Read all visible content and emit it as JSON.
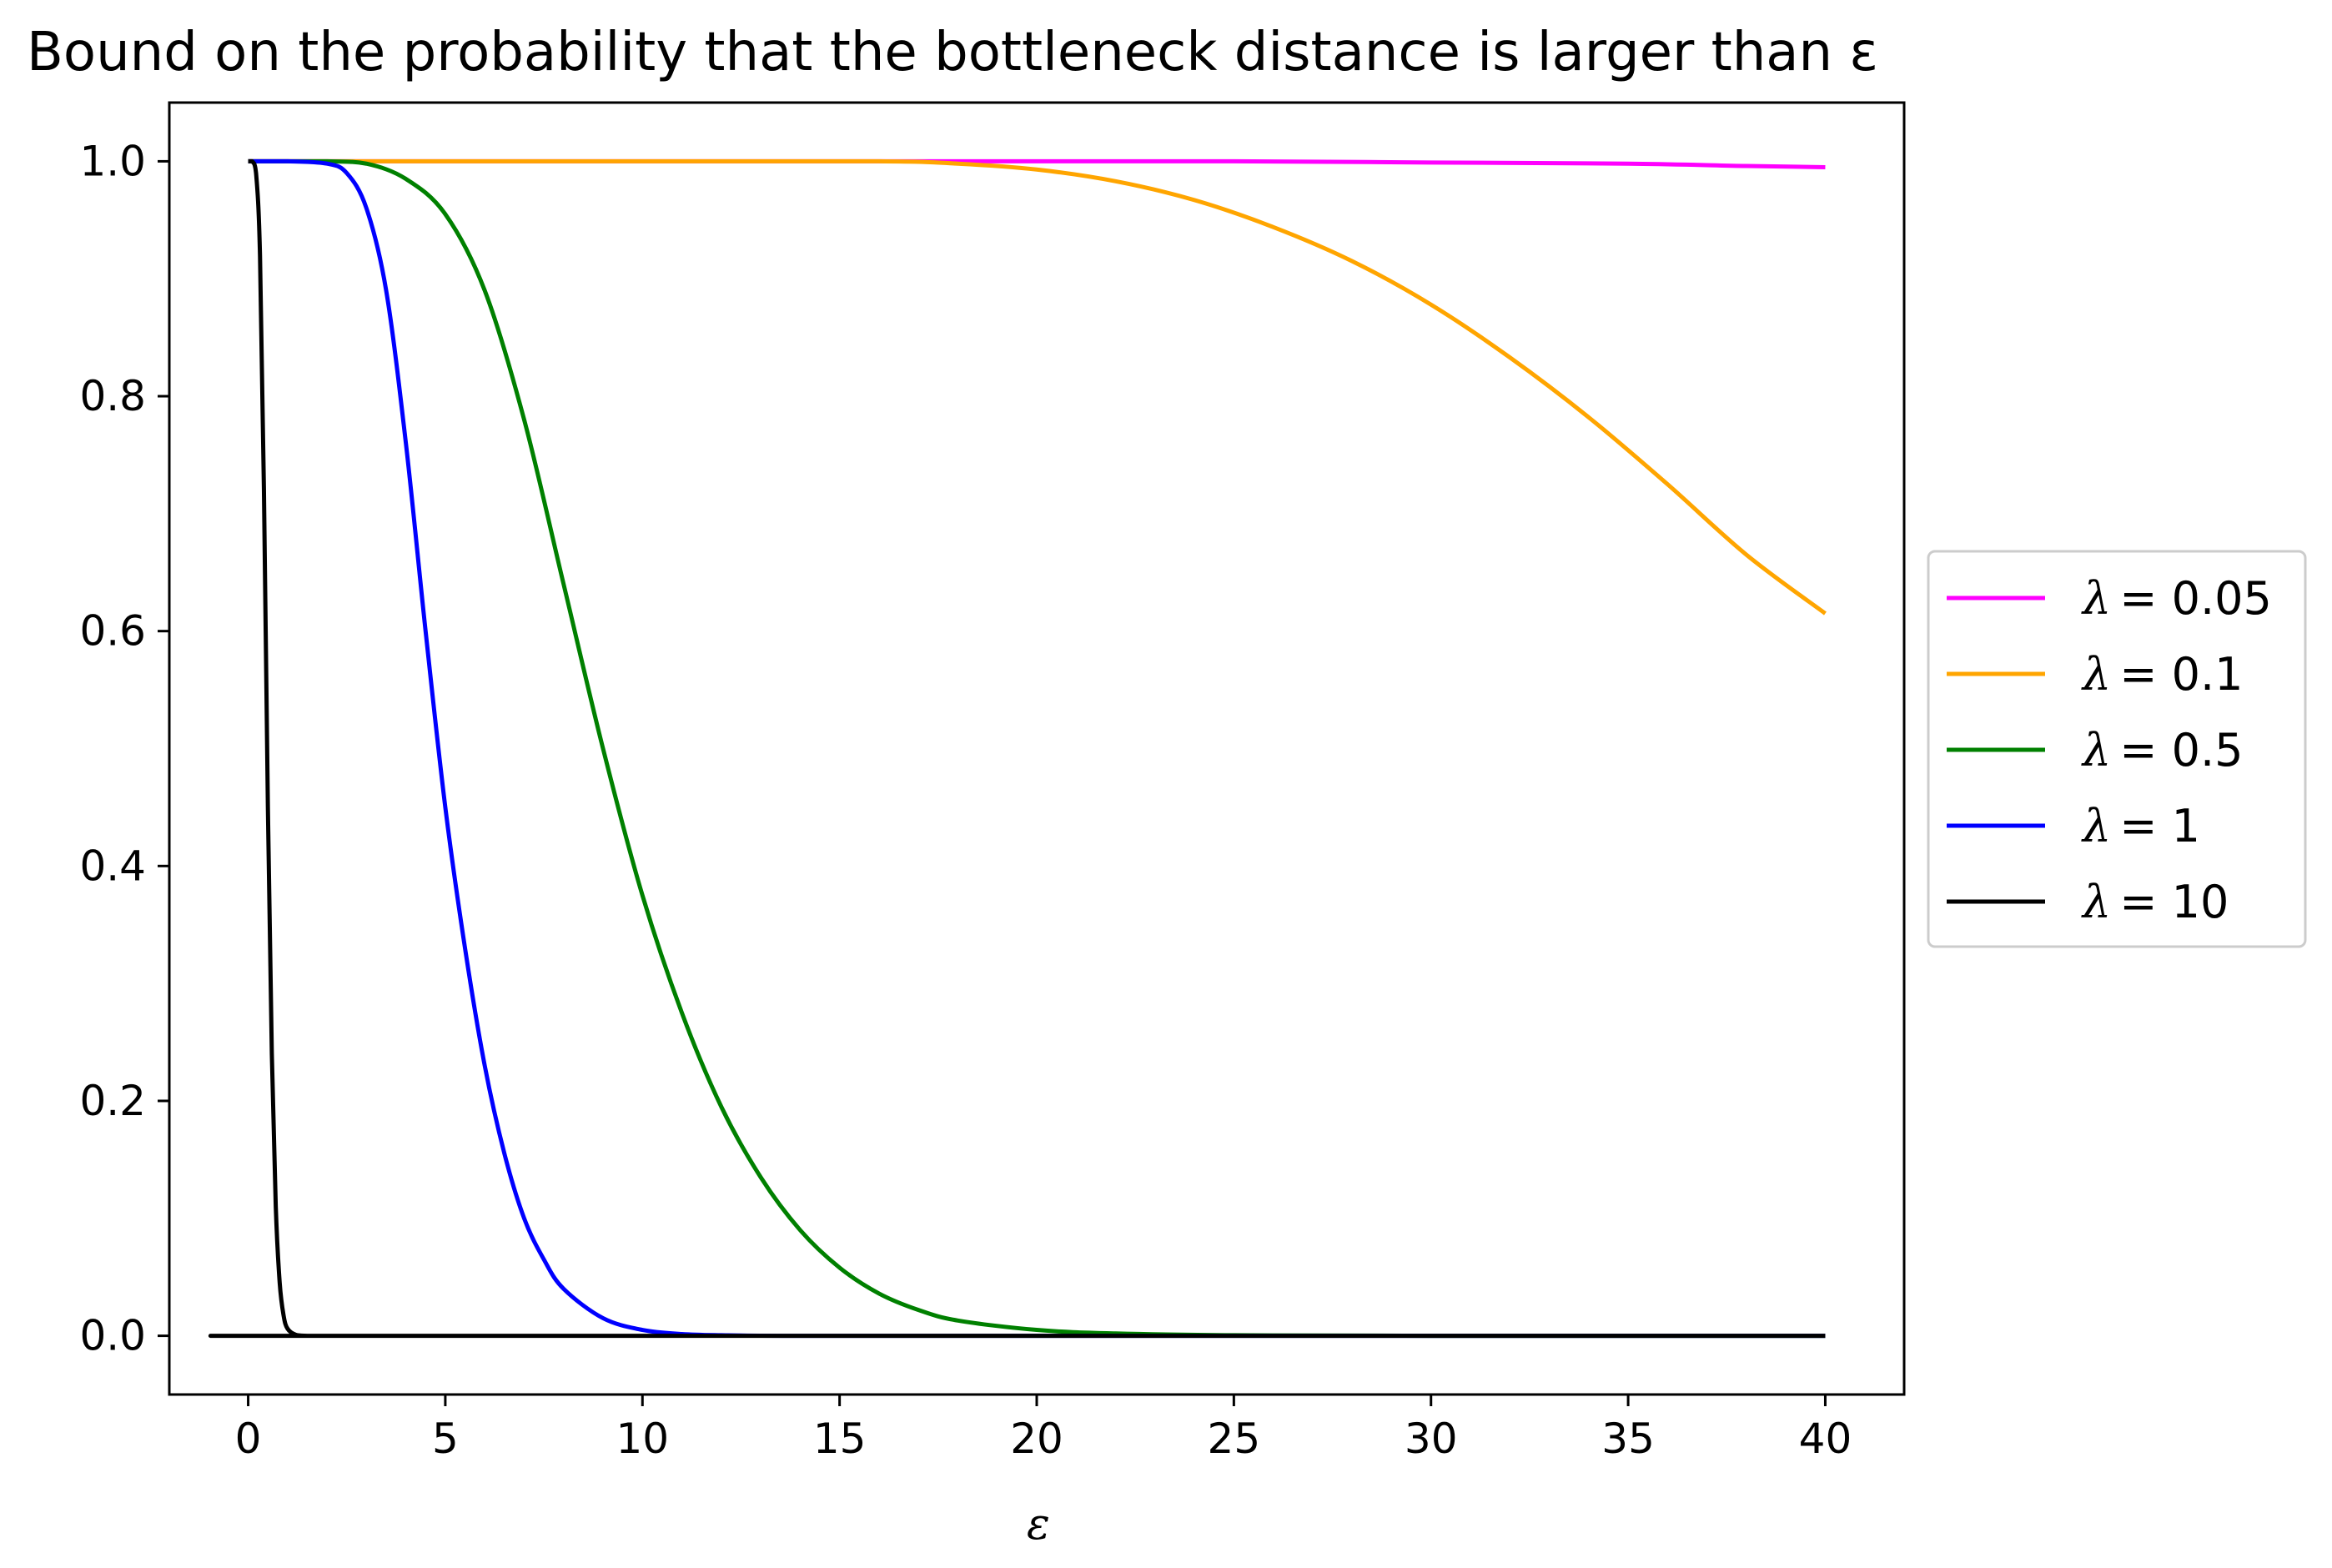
{
  "chart_data": {
    "type": "line",
    "title": "Bound on the probability that the bottleneck distance is larger than ε",
    "xlabel": "ε",
    "ylabel": "",
    "xlim": [
      -2,
      42
    ],
    "ylim": [
      -0.05,
      1.05
    ],
    "xticks": [
      0,
      5,
      10,
      15,
      20,
      25,
      30,
      35,
      40
    ],
    "xtick_labels": [
      "0",
      "5",
      "10",
      "15",
      "20",
      "25",
      "30",
      "35",
      "40"
    ],
    "yticks": [
      0.0,
      0.2,
      0.4,
      0.6,
      0.8,
      1.0
    ],
    "ytick_labels": [
      "0.0",
      "0.2",
      "0.4",
      "0.6",
      "0.8",
      "1.0"
    ],
    "grid": false,
    "legend_position": "outside-right-center",
    "legend_lambda_symbol": "λ",
    "series": [
      {
        "name": "λ = 0.05",
        "legend_value": "= 0.05",
        "color": "#ff00ff",
        "x": [
          0,
          5,
          10,
          15,
          20,
          25,
          30,
          35,
          38,
          40
        ],
        "y": [
          1.0,
          1.0,
          1.0,
          1.0,
          1.0,
          1.0,
          0.999,
          0.998,
          0.996,
          0.995
        ]
      },
      {
        "name": "λ = 0.1",
        "legend_value": "= 0.1",
        "color": "#ffa500",
        "x": [
          0,
          10,
          16,
          18,
          20,
          22,
          24,
          26,
          28,
          30,
          32,
          34,
          36,
          38,
          40
        ],
        "y": [
          1.0,
          1.0,
          1.0,
          0.998,
          0.993,
          0.983,
          0.967,
          0.944,
          0.915,
          0.878,
          0.833,
          0.782,
          0.725,
          0.665,
          0.615
        ]
      },
      {
        "name": "λ = 0.5",
        "legend_value": "= 0.5",
        "color": "#008000",
        "x": [
          0,
          2,
          3,
          4,
          5,
          6,
          7,
          8,
          9,
          10,
          11,
          12,
          13,
          14,
          15,
          16,
          17,
          18,
          20,
          22,
          25,
          30,
          40
        ],
        "y": [
          1.0,
          1.0,
          0.998,
          0.985,
          0.955,
          0.89,
          0.78,
          0.64,
          0.5,
          0.375,
          0.275,
          0.195,
          0.135,
          0.09,
          0.058,
          0.036,
          0.022,
          0.013,
          0.005,
          0.002,
          0.0005,
          0.0,
          0.0
        ]
      },
      {
        "name": "λ = 1",
        "legend_value": "= 1",
        "color": "#0000ff",
        "x": [
          0,
          1,
          2,
          2.5,
          3,
          3.5,
          4,
          4.5,
          5,
          5.5,
          6,
          6.5,
          7,
          7.5,
          8,
          9,
          10,
          11,
          12,
          14,
          20,
          40
        ],
        "y": [
          1.0,
          1.0,
          0.998,
          0.99,
          0.96,
          0.89,
          0.76,
          0.6,
          0.45,
          0.33,
          0.23,
          0.155,
          0.1,
          0.065,
          0.04,
          0.015,
          0.005,
          0.0015,
          0.0005,
          0.0,
          0.0,
          0.0
        ]
      },
      {
        "name": "λ = 10",
        "legend_value": "= 10",
        "color": "#000000",
        "x": [
          0,
          0.1,
          0.2,
          0.3,
          0.4,
          0.5,
          0.6,
          0.7,
          0.8,
          0.9,
          1.0,
          1.2,
          1.5,
          2,
          40
        ],
        "y": [
          1.0,
          1.0,
          0.99,
          0.92,
          0.72,
          0.45,
          0.24,
          0.11,
          0.045,
          0.017,
          0.006,
          0.001,
          0.0,
          0.0,
          0.0
        ]
      }
    ]
  }
}
